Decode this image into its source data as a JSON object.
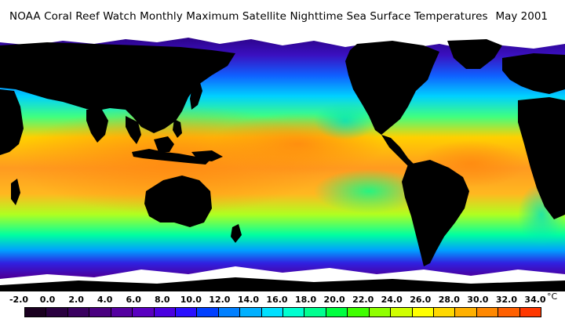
{
  "header": {
    "title": "NOAA Coral Reef Watch Monthly Maximum Satellite Nighttime Sea Surface Temperatures",
    "date": "May 2001"
  },
  "legend": {
    "unit": "°C",
    "ticks": [
      "-2.0",
      "0.0",
      "2.0",
      "4.0",
      "6.0",
      "8.0",
      "10.0",
      "12.0",
      "14.0",
      "16.0",
      "18.0",
      "20.0",
      "22.0",
      "24.0",
      "26.0",
      "28.0",
      "30.0",
      "32.0",
      "34.0"
    ],
    "colors": [
      "#1a0020",
      "#2a0040",
      "#3a0060",
      "#4a0080",
      "#5500a0",
      "#5a00c0",
      "#4a00e0",
      "#2a10ff",
      "#0040ff",
      "#0080ff",
      "#00b0ff",
      "#00e0ff",
      "#00ffd0",
      "#00ff90",
      "#00ff40",
      "#40ff00",
      "#90ff00",
      "#d0ff00",
      "#ffff00",
      "#ffd800",
      "#ffb000",
      "#ff8800",
      "#ff6000",
      "#ff3800"
    ]
  },
  "map": {
    "land_color": "#000000",
    "ice_color": "#ffffff",
    "colors": {
      "cold": "#3a00a0",
      "cool": "#0060ff",
      "mild": "#00d0ff",
      "temperate": "#00ff80",
      "warm": "#c0ff00",
      "hot": "#ff9a20"
    }
  }
}
